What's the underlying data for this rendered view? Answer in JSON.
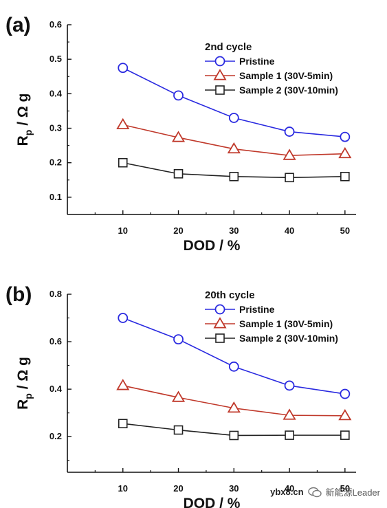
{
  "chart_data": [
    {
      "type": "line",
      "panel_label": "(a)",
      "legend_title": "2nd cycle",
      "xlabel": "DOD / %",
      "ylabel_main": "R",
      "ylabel_sub": "p",
      "ylabel_rest": " / Ω g",
      "x": [
        10,
        20,
        30,
        40,
        50
      ],
      "x_ticks": [
        "10",
        "20",
        "30",
        "40",
        "50"
      ],
      "xlim": [
        0,
        52
      ],
      "ylim": [
        0.05,
        0.6
      ],
      "y_ticks": [
        0.1,
        0.2,
        0.3,
        0.4,
        0.5,
        0.6
      ],
      "y_tick_labels": [
        "0.1",
        "0.2",
        "0.3",
        "0.4",
        "0.5",
        "0.6"
      ],
      "series": [
        {
          "name": "Pristine",
          "marker": "circle",
          "color": "#2a2ae0",
          "values": [
            0.475,
            0.395,
            0.33,
            0.29,
            0.275
          ]
        },
        {
          "name": "Sample 1 (30V-5min)",
          "marker": "triangle",
          "color": "#c0392b",
          "values": [
            0.31,
            0.273,
            0.24,
            0.221,
            0.226
          ]
        },
        {
          "name": "Sample 2 (30V-10min)",
          "marker": "square",
          "color": "#222222",
          "values": [
            0.2,
            0.168,
            0.16,
            0.157,
            0.16
          ]
        }
      ]
    },
    {
      "type": "line",
      "panel_label": "(b)",
      "legend_title": "20th cycle",
      "xlabel": "DOD / %",
      "ylabel_main": "R",
      "ylabel_sub": "p",
      "ylabel_rest": " / Ω g",
      "x": [
        10,
        20,
        30,
        40,
        50
      ],
      "x_ticks": [
        "10",
        "20",
        "30",
        "40",
        "50"
      ],
      "xlim": [
        0,
        52
      ],
      "ylim": [
        0.05,
        0.8
      ],
      "y_ticks": [
        0.2,
        0.4,
        0.6,
        0.8
      ],
      "y_tick_labels": [
        "0.2",
        "0.4",
        "0.6",
        "0.8"
      ],
      "series": [
        {
          "name": "Pristine",
          "marker": "circle",
          "color": "#2a2ae0",
          "values": [
            0.7,
            0.61,
            0.495,
            0.415,
            0.38
          ]
        },
        {
          "name": "Sample 1 (30V-5min)",
          "marker": "triangle",
          "color": "#c0392b",
          "values": [
            0.415,
            0.365,
            0.32,
            0.29,
            0.288
          ]
        },
        {
          "name": "Sample 2 (30V-10min)",
          "marker": "square",
          "color": "#222222",
          "values": [
            0.255,
            0.228,
            0.205,
            0.206,
            0.206
          ]
        }
      ]
    }
  ],
  "watermark": {
    "url": "ybx8.cn",
    "brand": "新能源Leader"
  }
}
